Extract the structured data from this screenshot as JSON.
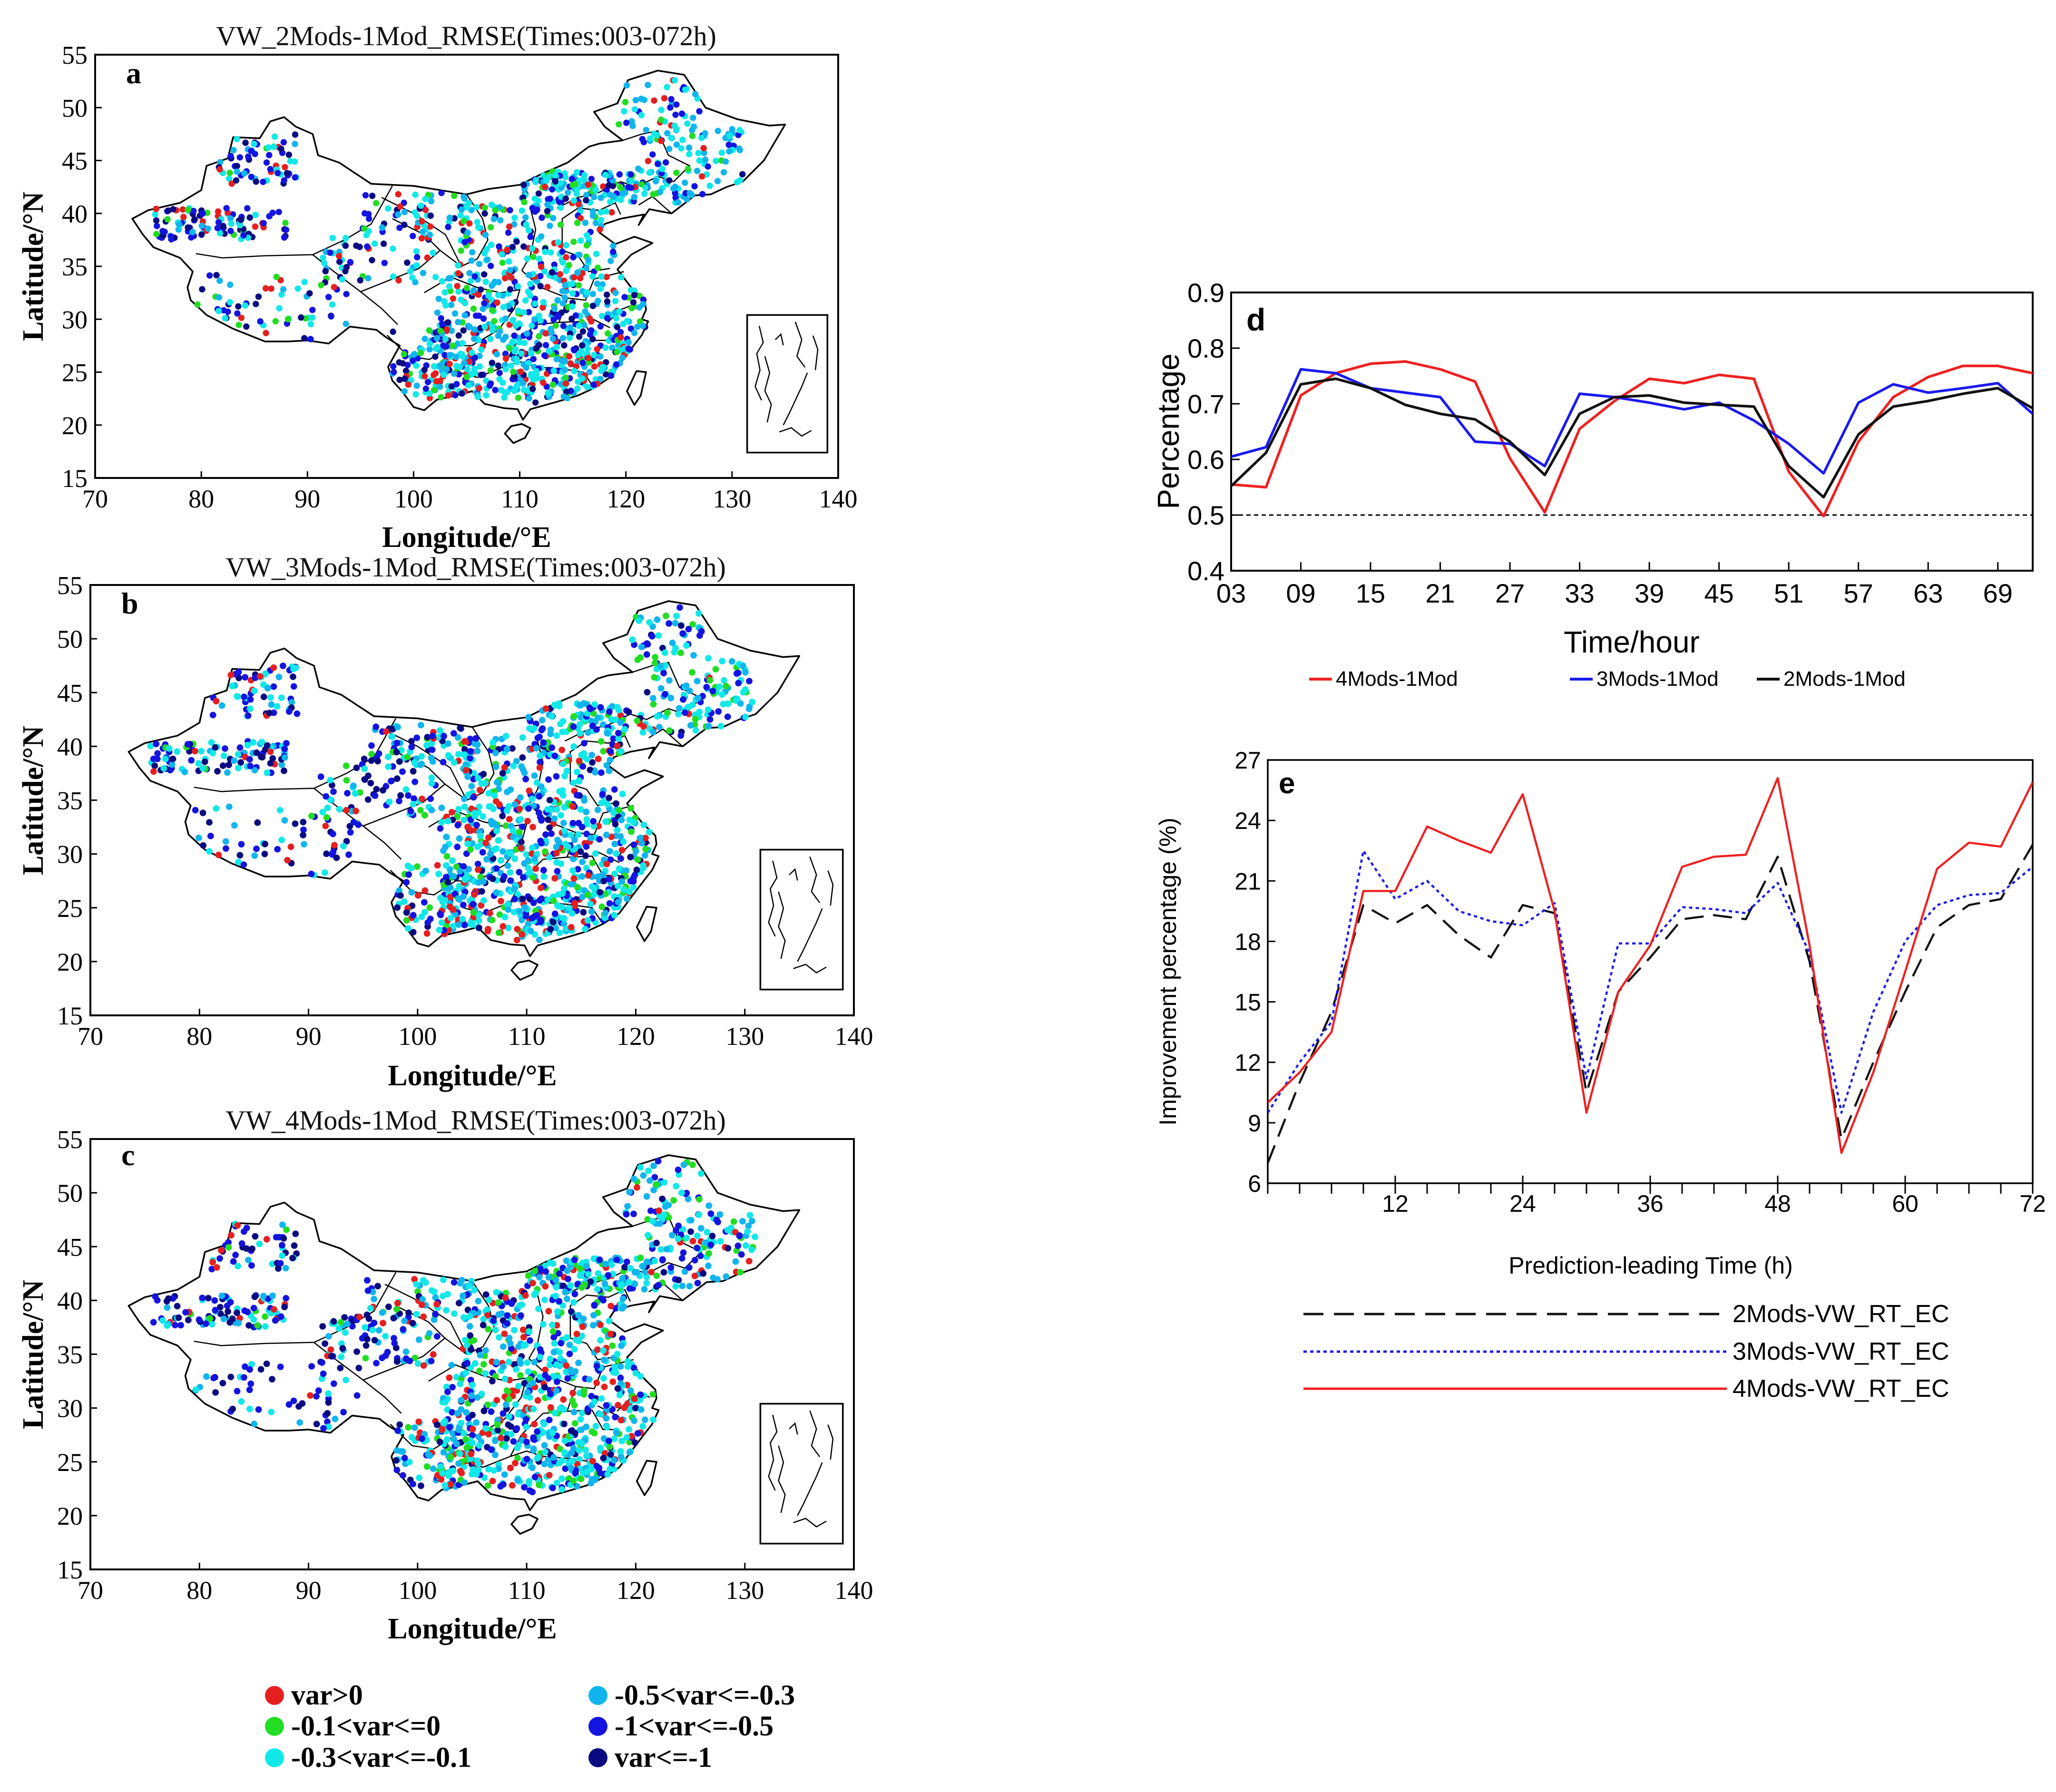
{
  "maps": [
    {
      "letter": "a",
      "title": "VW_2Mods-1Mod_RMSE(Times:003-072h)"
    },
    {
      "letter": "b",
      "title": "VW_3Mods-1Mod_RMSE(Times:003-072h)"
    },
    {
      "letter": "c",
      "title": "VW_4Mods-1Mod_RMSE(Times:003-072h)"
    }
  ],
  "map_axes": {
    "xlabel": "Longitude/°E",
    "ylabel": "Latitude/°N",
    "xticks": [
      70,
      80,
      90,
      100,
      110,
      120,
      130,
      140
    ],
    "yticks": [
      15,
      20,
      25,
      30,
      35,
      40,
      45,
      50,
      55
    ]
  },
  "map_legend": [
    {
      "label": "var>0",
      "color": "#e51f1f"
    },
    {
      "label": "-0.1<var<=0",
      "color": "#22dd22"
    },
    {
      "label": "-0.3<var<=-0.1",
      "color": "#11e8e8"
    },
    {
      "label": "-0.5<var<=-0.3",
      "color": "#11b5ee"
    },
    {
      "label": "-1<var<=-0.5",
      "color": "#1414e0"
    },
    {
      "label": "var<=-1",
      "color": "#0a0a80"
    }
  ],
  "chart_data": [
    {
      "type": "line",
      "panel": "d",
      "title": "",
      "xlabel": "Time/hour",
      "ylabel": "Percentage",
      "xlim": [
        3,
        72
      ],
      "ylim": [
        0.4,
        0.9
      ],
      "xticks": [
        "03",
        "09",
        "15",
        "21",
        "27",
        "33",
        "39",
        "45",
        "51",
        "57",
        "63",
        "69"
      ],
      "yticks": [
        "0.4",
        "0.5",
        "0.6",
        "0.7",
        "0.8",
        "0.9"
      ],
      "reference_line": 0.5,
      "x": [
        3,
        6,
        9,
        12,
        15,
        18,
        21,
        24,
        27,
        30,
        33,
        36,
        39,
        42,
        45,
        48,
        51,
        54,
        57,
        60,
        63,
        66,
        69,
        72
      ],
      "series": [
        {
          "name": "4Mods-1Mod",
          "color": "#ef2020",
          "dash": "",
          "values": [
            0.555,
            0.55,
            0.715,
            0.755,
            0.772,
            0.776,
            0.762,
            0.74,
            0.602,
            0.505,
            0.655,
            0.705,
            0.745,
            0.737,
            0.752,
            0.745,
            0.578,
            0.498,
            0.632,
            0.712,
            0.748,
            0.768,
            0.768,
            0.755
          ]
        },
        {
          "name": "3Mods-1Mod",
          "color": "#1a1aee",
          "dash": "",
          "values": [
            0.605,
            0.622,
            0.762,
            0.755,
            0.728,
            0.72,
            0.712,
            0.632,
            0.628,
            0.588,
            0.718,
            0.712,
            0.702,
            0.69,
            0.702,
            0.67,
            0.628,
            0.575,
            0.702,
            0.735,
            0.72,
            0.728,
            0.737,
            0.682
          ]
        },
        {
          "name": "2Mods-1Mod",
          "color": "#111111",
          "dash": "",
          "values": [
            0.552,
            0.612,
            0.735,
            0.745,
            0.728,
            0.698,
            0.682,
            0.672,
            0.632,
            0.572,
            0.682,
            0.712,
            0.715,
            0.702,
            0.698,
            0.695,
            0.588,
            0.532,
            0.645,
            0.695,
            0.705,
            0.718,
            0.728,
            0.692
          ]
        }
      ]
    },
    {
      "type": "line",
      "panel": "e",
      "title": "",
      "xlabel": "Prediction-leading Time (h)",
      "ylabel": "Improvement percentage (%)",
      "xlim": [
        0,
        72
      ],
      "ylim": [
        6,
        27
      ],
      "xticks": [
        "12",
        "24",
        "36",
        "48",
        "60",
        "72"
      ],
      "yticks": [
        "6",
        "9",
        "12",
        "15",
        "18",
        "21",
        "24",
        "27"
      ],
      "x": [
        0,
        3,
        6,
        9,
        12,
        15,
        18,
        21,
        24,
        27,
        30,
        33,
        36,
        39,
        42,
        45,
        48,
        51,
        54,
        57,
        60,
        63,
        66,
        69,
        72
      ],
      "series": [
        {
          "name": "2Mods-VW_RT_EC",
          "color": "#111111",
          "dash": "long",
          "values": [
            7.0,
            11.0,
            14.5,
            19.8,
            18.9,
            19.8,
            18.3,
            17.2,
            19.8,
            19.4,
            10.5,
            15.5,
            17.2,
            19.1,
            19.3,
            19.1,
            22.2,
            17.0,
            8.2,
            12.0,
            15.5,
            18.7,
            19.8,
            20.1,
            22.8
          ]
        },
        {
          "name": "3Mods-VW_RT_EC",
          "color": "#1a1aee",
          "dash": "dot",
          "values": [
            9.5,
            12.0,
            14.0,
            22.5,
            20.1,
            21.0,
            19.5,
            19.0,
            18.8,
            19.9,
            11.2,
            17.9,
            17.9,
            19.7,
            19.6,
            19.4,
            20.9,
            17.4,
            9.5,
            14.5,
            18.0,
            19.8,
            20.3,
            20.4,
            21.7
          ]
        },
        {
          "name": "4Mods-VW_RT_EC",
          "color": "#ef2020",
          "dash": "",
          "values": [
            10.0,
            11.5,
            13.5,
            20.5,
            20.5,
            23.7,
            23.0,
            22.4,
            25.3,
            19.5,
            9.5,
            15.5,
            17.8,
            21.7,
            22.2,
            22.3,
            26.1,
            17.8,
            7.5,
            11.5,
            16.5,
            21.6,
            22.9,
            22.7,
            25.9
          ]
        }
      ]
    }
  ]
}
